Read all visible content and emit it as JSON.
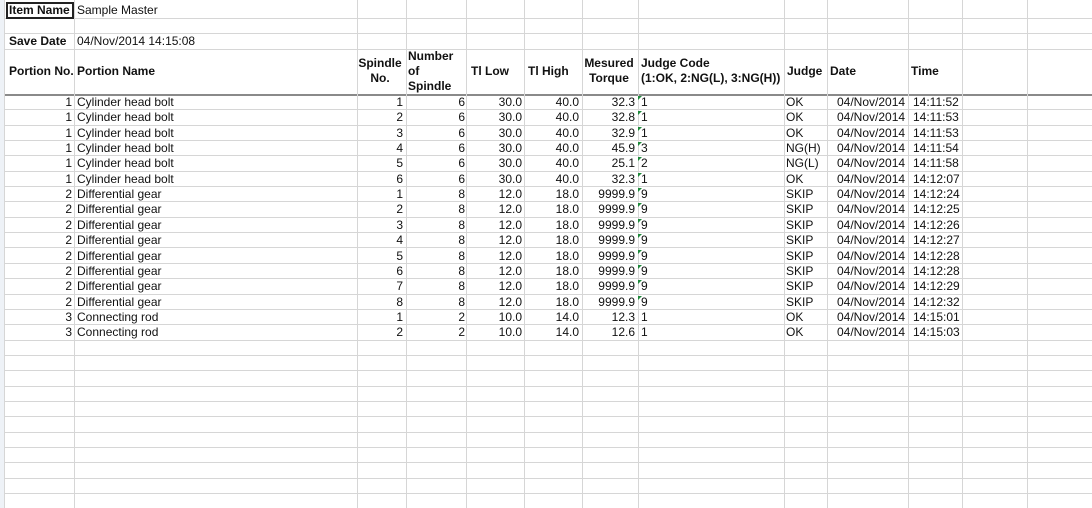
{
  "header": {
    "item_name_label": "Item Name",
    "item_name_value": "Sample Master",
    "save_date_label": "Save Date",
    "save_date_value": "04/Nov/2014 14:15:08"
  },
  "columns": {
    "portion_no": "Portion No.",
    "portion_name": "Portion Name",
    "spindle_no_1": "Spindle",
    "spindle_no_2": "No.",
    "num_spindle_1": "Number",
    "num_spindle_2": "of",
    "num_spindle_3": "Spindle",
    "tl_low": "Tl Low",
    "tl_high": "Tl High",
    "torque_1": "Mesured",
    "torque_2": "Torque",
    "judge_code_1": "Judge Code",
    "judge_code_2": "(1:OK, 2:NG(L), 3:NG(H))",
    "judge": "Judge",
    "date": "Date",
    "time": "Time"
  },
  "rows": [
    {
      "portion_no": "1",
      "portion_name": "Cylinder head bolt",
      "spindle_no": "1",
      "num_spindle": "6",
      "tl_low": "30.0",
      "tl_high": "40.0",
      "torque": "32.3",
      "judge_code": "1",
      "judge": "OK",
      "date": "04/Nov/2014",
      "time": "14:11:52"
    },
    {
      "portion_no": "1",
      "portion_name": "Cylinder head bolt",
      "spindle_no": "2",
      "num_spindle": "6",
      "tl_low": "30.0",
      "tl_high": "40.0",
      "torque": "32.8",
      "judge_code": "1",
      "judge": "OK",
      "date": "04/Nov/2014",
      "time": "14:11:53"
    },
    {
      "portion_no": "1",
      "portion_name": "Cylinder head bolt",
      "spindle_no": "3",
      "num_spindle": "6",
      "tl_low": "30.0",
      "tl_high": "40.0",
      "torque": "32.9",
      "judge_code": "1",
      "judge": "OK",
      "date": "04/Nov/2014",
      "time": "14:11:53"
    },
    {
      "portion_no": "1",
      "portion_name": "Cylinder head bolt",
      "spindle_no": "4",
      "num_spindle": "6",
      "tl_low": "30.0",
      "tl_high": "40.0",
      "torque": "45.9",
      "judge_code": "3",
      "judge": "NG(H)",
      "date": "04/Nov/2014",
      "time": "14:11:54"
    },
    {
      "portion_no": "1",
      "portion_name": "Cylinder head bolt",
      "spindle_no": "5",
      "num_spindle": "6",
      "tl_low": "30.0",
      "tl_high": "40.0",
      "torque": "25.1",
      "judge_code": "2",
      "judge": "NG(L)",
      "date": "04/Nov/2014",
      "time": "14:11:58"
    },
    {
      "portion_no": "1",
      "portion_name": "Cylinder head bolt",
      "spindle_no": "6",
      "num_spindle": "6",
      "tl_low": "30.0",
      "tl_high": "40.0",
      "torque": "32.3",
      "judge_code": "1",
      "judge": "OK",
      "date": "04/Nov/2014",
      "time": "14:12:07"
    },
    {
      "portion_no": "2",
      "portion_name": "Differential gear",
      "spindle_no": "1",
      "num_spindle": "8",
      "tl_low": "12.0",
      "tl_high": "18.0",
      "torque": "9999.9",
      "judge_code": "9",
      "judge": "SKIP",
      "date": "04/Nov/2014",
      "time": "14:12:24"
    },
    {
      "portion_no": "2",
      "portion_name": "Differential gear",
      "spindle_no": "2",
      "num_spindle": "8",
      "tl_low": "12.0",
      "tl_high": "18.0",
      "torque": "9999.9",
      "judge_code": "9",
      "judge": "SKIP",
      "date": "04/Nov/2014",
      "time": "14:12:25"
    },
    {
      "portion_no": "2",
      "portion_name": "Differential gear",
      "spindle_no": "3",
      "num_spindle": "8",
      "tl_low": "12.0",
      "tl_high": "18.0",
      "torque": "9999.9",
      "judge_code": "9",
      "judge": "SKIP",
      "date": "04/Nov/2014",
      "time": "14:12:26"
    },
    {
      "portion_no": "2",
      "portion_name": "Differential gear",
      "spindle_no": "4",
      "num_spindle": "8",
      "tl_low": "12.0",
      "tl_high": "18.0",
      "torque": "9999.9",
      "judge_code": "9",
      "judge": "SKIP",
      "date": "04/Nov/2014",
      "time": "14:12:27"
    },
    {
      "portion_no": "2",
      "portion_name": "Differential gear",
      "spindle_no": "5",
      "num_spindle": "8",
      "tl_low": "12.0",
      "tl_high": "18.0",
      "torque": "9999.9",
      "judge_code": "9",
      "judge": "SKIP",
      "date": "04/Nov/2014",
      "time": "14:12:28"
    },
    {
      "portion_no": "2",
      "portion_name": "Differential gear",
      "spindle_no": "6",
      "num_spindle": "8",
      "tl_low": "12.0",
      "tl_high": "18.0",
      "torque": "9999.9",
      "judge_code": "9",
      "judge": "SKIP",
      "date": "04/Nov/2014",
      "time": "14:12:28"
    },
    {
      "portion_no": "2",
      "portion_name": "Differential gear",
      "spindle_no": "7",
      "num_spindle": "8",
      "tl_low": "12.0",
      "tl_high": "18.0",
      "torque": "9999.9",
      "judge_code": "9",
      "judge": "SKIP",
      "date": "04/Nov/2014",
      "time": "14:12:29"
    },
    {
      "portion_no": "2",
      "portion_name": "Differential gear",
      "spindle_no": "8",
      "num_spindle": "8",
      "tl_low": "12.0",
      "tl_high": "18.0",
      "torque": "9999.9",
      "judge_code": "9",
      "judge": "SKIP",
      "date": "04/Nov/2014",
      "time": "14:12:32"
    },
    {
      "portion_no": "3",
      "portion_name": "Connecting rod",
      "spindle_no": "1",
      "num_spindle": "2",
      "tl_low": "10.0",
      "tl_high": "14.0",
      "torque": "12.3",
      "judge_code": "1",
      "judge": "OK",
      "date": "04/Nov/2014",
      "time": "14:15:01"
    },
    {
      "portion_no": "3",
      "portion_name": "Connecting rod",
      "spindle_no": "2",
      "num_spindle": "2",
      "tl_low": "10.0",
      "tl_high": "14.0",
      "torque": "12.6",
      "judge_code": "1",
      "judge": "OK",
      "date": "04/Nov/2014",
      "time": "14:15:03"
    }
  ],
  "colors": {
    "gridline": "#d6d6d6",
    "header_rule": "#8a8a8a",
    "comment_marker": "#1f8a3b"
  }
}
